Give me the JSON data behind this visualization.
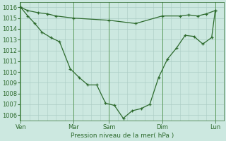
{
  "background_color": "#cce8e0",
  "grid_color": "#aaccc4",
  "line_color": "#2d6a2d",
  "sep_color": "#5a9a5a",
  "title": "Pression niveau de la mer( hPa )",
  "x_ticks_labels": [
    "Ven",
    "Mar",
    "Sam",
    "Dim",
    "Lun"
  ],
  "x_ticks_pos": [
    0.0,
    3.0,
    5.0,
    8.0,
    11.0
  ],
  "xlim": [
    -0.05,
    11.5
  ],
  "ylim": [
    1005.5,
    1016.5
  ],
  "yticks": [
    1006,
    1007,
    1008,
    1009,
    1010,
    1011,
    1012,
    1013,
    1014,
    1015,
    1016
  ],
  "line1_x": [
    0,
    0.4,
    1.0,
    1.5,
    2.0,
    3.0,
    5.0,
    6.5,
    8.0,
    9.0,
    9.5,
    10.0,
    10.5,
    11.0
  ],
  "line1_y": [
    1016.0,
    1015.7,
    1015.5,
    1015.4,
    1015.2,
    1015.0,
    1014.8,
    1014.5,
    1015.2,
    1015.2,
    1015.3,
    1015.2,
    1015.4,
    1015.7
  ],
  "line2_x": [
    0,
    0.4,
    0.8,
    1.2,
    1.7,
    2.2,
    2.8,
    3.3,
    3.8,
    4.3,
    4.8,
    5.3,
    5.8,
    6.3,
    6.8,
    7.3,
    7.8,
    8.3,
    8.8,
    9.3,
    9.8,
    10.3,
    10.8,
    11.0
  ],
  "line2_y": [
    1016.0,
    1015.2,
    1014.5,
    1013.7,
    1013.2,
    1012.8,
    1010.3,
    1009.5,
    1008.8,
    1008.8,
    1007.1,
    1006.9,
    1005.7,
    1006.4,
    1006.6,
    1007.0,
    1009.5,
    1011.2,
    1012.2,
    1013.4,
    1013.3,
    1012.6,
    1013.2,
    1015.7
  ]
}
